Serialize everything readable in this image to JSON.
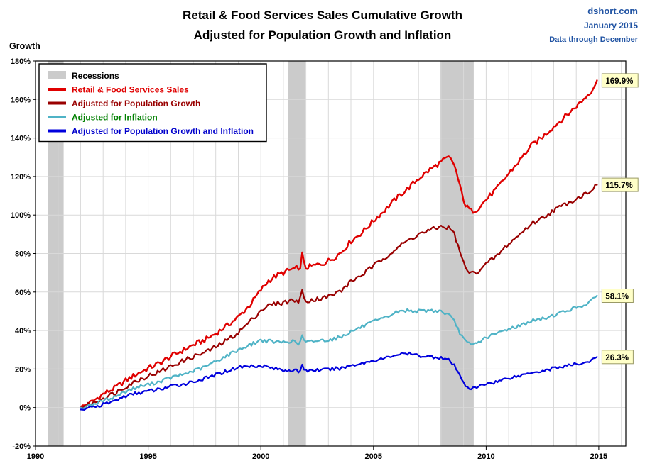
{
  "header": {
    "title_line1": "Retail & Food Services Sales Cumulative Growth",
    "title_line2": "Adjusted for Population Growth and Inflation",
    "source": "dshort.com",
    "date": "January 2015",
    "note": "Data through December"
  },
  "chart_data": {
    "type": "line",
    "title": "Retail & Food Services Sales Cumulative Growth Adjusted for Population Growth and Inflation",
    "xlabel": "",
    "ylabel": "Growth",
    "xlim": [
      1990,
      2016.2
    ],
    "ylim": [
      -20,
      180
    ],
    "x_ticks": [
      1990,
      1995,
      2000,
      2005,
      2010,
      2015
    ],
    "y_tick_step": 20,
    "y_tick_suffix": "%",
    "grid": true,
    "legend_position": "top-left",
    "recession_label": "Recessions",
    "recessions": [
      [
        1990.55,
        1991.25
      ],
      [
        2001.2,
        2001.95
      ],
      [
        2007.95,
        2009.45
      ]
    ],
    "colors": {
      "header_text": "#2053A3",
      "grid": "#D9D9D9",
      "recession": "#CBCBCB",
      "end_label_bg": "#FFFFC8",
      "end_label_border": "#999966",
      "plot_border": "#000000"
    },
    "x": [
      1992.0,
      1992.5,
      1993.0,
      1993.5,
      1994.0,
      1994.5,
      1995.0,
      1995.5,
      1996.0,
      1996.5,
      1997.0,
      1997.5,
      1998.0,
      1998.5,
      1999.0,
      1999.5,
      2000.0,
      2000.35,
      2000.7,
      2001.0,
      2001.3,
      2001.6,
      2001.7,
      2001.83,
      2001.95,
      2002.3,
      2002.8,
      2003.2,
      2003.6,
      2004.0,
      2004.5,
      2005.0,
      2005.5,
      2006.0,
      2006.5,
      2007.0,
      2007.5,
      2008.0,
      2008.35,
      2008.6,
      2008.85,
      2009.1,
      2009.35,
      2009.6,
      2010.0,
      2010.5,
      2011.0,
      2011.5,
      2012.0,
      2012.5,
      2013.0,
      2013.5,
      2014.0,
      2014.4,
      2014.7,
      2014.92
    ],
    "series": [
      {
        "name": "Retail & Food Services Sales",
        "color": "#E00000",
        "label_color": "#E00000",
        "end_label": "169.9%",
        "noise": 1.4,
        "width": 2.4,
        "values": [
          0,
          3,
          7,
          10,
          14,
          17.5,
          20.5,
          23,
          26.5,
          29.5,
          32.5,
          35,
          38.5,
          42.5,
          47,
          53,
          61,
          66,
          68.5,
          70,
          71.5,
          72.5,
          69.5,
          80,
          72.5,
          73.5,
          75,
          77.5,
          81,
          86.5,
          91,
          97,
          102.5,
          108.5,
          113.5,
          119,
          123.5,
          127.5,
          130,
          126,
          114,
          104.5,
          102,
          103,
          108,
          114,
          121.5,
          128.5,
          136,
          140.5,
          146,
          151,
          156.5,
          161,
          165,
          169.9
        ]
      },
      {
        "name": "Adjusted for Population Growth",
        "color": "#990000",
        "label_color": "#990000",
        "end_label": "115.7%",
        "noise": 1.2,
        "width": 2.2,
        "values": [
          0,
          2,
          5,
          7.5,
          11,
          14,
          16.5,
          18.5,
          21.5,
          24,
          26.5,
          28.5,
          31.5,
          35,
          39,
          44.5,
          50.5,
          53,
          54,
          54.5,
          55.5,
          56,
          53.5,
          61,
          55.5,
          56,
          57,
          58.5,
          61,
          65.5,
          69,
          73.5,
          78,
          82.5,
          86.5,
          90,
          92,
          94,
          93.5,
          90,
          80,
          72,
          69.5,
          70.5,
          74.5,
          79,
          85,
          90,
          95.5,
          98.5,
          102.5,
          105.5,
          108.5,
          111,
          113.5,
          115.7
        ]
      },
      {
        "name": "Adjusted for Inflation",
        "color": "#4FB3C6",
        "label_color": "#008000",
        "end_label": "58.1%",
        "noise": 0.9,
        "width": 2.2,
        "values": [
          0,
          1.5,
          3.5,
          5.5,
          8.5,
          10.5,
          12,
          13.5,
          15.5,
          17,
          19,
          21,
          24,
          27,
          30,
          32.5,
          35,
          34.5,
          34,
          34,
          34.5,
          34,
          31.5,
          38,
          33.5,
          34.5,
          35,
          35.5,
          37,
          39.5,
          42,
          44.5,
          46.5,
          49.5,
          50.5,
          50,
          50.5,
          50,
          48,
          44.5,
          38.5,
          34,
          32.5,
          33.5,
          36.5,
          38.5,
          41,
          42.5,
          45,
          46,
          48,
          50,
          52,
          53.5,
          55.5,
          58.1
        ]
      },
      {
        "name": "Adjusted for Population Growth and Inflation",
        "color": "#0000DD",
        "label_color": "#0000CC",
        "end_label": "26.3%",
        "noise": 0.9,
        "width": 2.2,
        "values": [
          -1,
          0,
          1.5,
          3.5,
          6,
          7.5,
          8.5,
          9.5,
          11,
          12,
          13.5,
          15,
          17,
          19,
          21,
          21.5,
          22,
          21,
          20,
          19.5,
          19.5,
          19,
          17,
          23,
          19,
          19.5,
          19.5,
          20,
          20.5,
          22,
          23,
          24.5,
          25.5,
          27.5,
          28,
          27,
          26.5,
          26,
          24.5,
          21.5,
          16,
          11.5,
          9.5,
          10.5,
          12.5,
          13.5,
          15.5,
          16.5,
          18.5,
          19,
          20.5,
          21.5,
          22.5,
          23.5,
          24.5,
          26.3
        ]
      }
    ]
  }
}
